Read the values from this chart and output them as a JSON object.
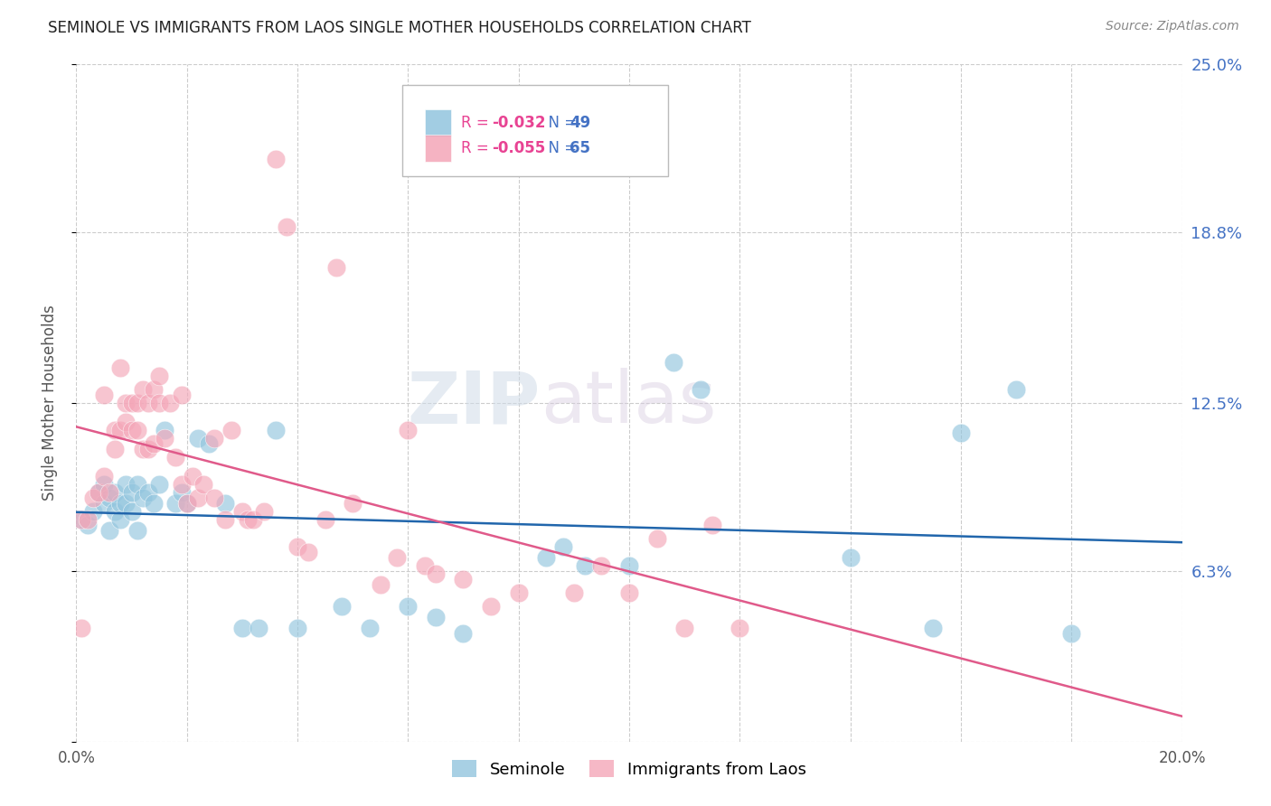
{
  "title": "SEMINOLE VS IMMIGRANTS FROM LAOS SINGLE MOTHER HOUSEHOLDS CORRELATION CHART",
  "source": "Source: ZipAtlas.com",
  "ylabel": "Single Mother Households",
  "xlim": [
    0.0,
    0.2
  ],
  "ylim": [
    0.0,
    0.25
  ],
  "ytick_positions": [
    0.0,
    0.063,
    0.125,
    0.188,
    0.25
  ],
  "ytick_labels": [
    "",
    "6.3%",
    "12.5%",
    "18.8%",
    "25.0%"
  ],
  "grid_color": "#cccccc",
  "background_color": "#ffffff",
  "watermark_text": "ZIPatlas",
  "series": [
    {
      "label": "Seminole",
      "color": "#92c5de",
      "R": -0.032,
      "N": 49,
      "x": [
        0.001,
        0.002,
        0.003,
        0.004,
        0.005,
        0.005,
        0.006,
        0.006,
        0.007,
        0.007,
        0.008,
        0.008,
        0.009,
        0.009,
        0.01,
        0.01,
        0.011,
        0.011,
        0.012,
        0.013,
        0.014,
        0.015,
        0.016,
        0.018,
        0.019,
        0.02,
        0.022,
        0.024,
        0.027,
        0.03,
        0.033,
        0.036,
        0.04,
        0.048,
        0.053,
        0.06,
        0.065,
        0.07,
        0.085,
        0.088,
        0.092,
        0.1,
        0.108,
        0.113,
        0.14,
        0.155,
        0.16,
        0.17,
        0.18
      ],
      "y": [
        0.082,
        0.08,
        0.085,
        0.092,
        0.088,
        0.095,
        0.078,
        0.09,
        0.085,
        0.092,
        0.088,
        0.082,
        0.095,
        0.088,
        0.092,
        0.085,
        0.095,
        0.078,
        0.09,
        0.092,
        0.088,
        0.095,
        0.115,
        0.088,
        0.092,
        0.088,
        0.112,
        0.11,
        0.088,
        0.042,
        0.042,
        0.115,
        0.042,
        0.05,
        0.042,
        0.05,
        0.046,
        0.04,
        0.068,
        0.072,
        0.065,
        0.065,
        0.14,
        0.13,
        0.068,
        0.042,
        0.114,
        0.13,
        0.04
      ]
    },
    {
      "label": "Immigrants from Laos",
      "color": "#f4a6b8",
      "R": -0.055,
      "N": 65,
      "x": [
        0.001,
        0.001,
        0.002,
        0.003,
        0.004,
        0.005,
        0.005,
        0.006,
        0.007,
        0.007,
        0.008,
        0.008,
        0.009,
        0.009,
        0.01,
        0.01,
        0.011,
        0.011,
        0.012,
        0.012,
        0.013,
        0.013,
        0.014,
        0.014,
        0.015,
        0.015,
        0.016,
        0.017,
        0.018,
        0.019,
        0.019,
        0.02,
        0.021,
        0.022,
        0.023,
        0.025,
        0.025,
        0.027,
        0.028,
        0.03,
        0.031,
        0.032,
        0.034,
        0.036,
        0.038,
        0.04,
        0.042,
        0.045,
        0.047,
        0.05,
        0.055,
        0.058,
        0.06,
        0.063,
        0.065,
        0.07,
        0.075,
        0.08,
        0.09,
        0.095,
        0.1,
        0.105,
        0.11,
        0.115,
        0.12
      ],
      "y": [
        0.082,
        0.042,
        0.082,
        0.09,
        0.092,
        0.128,
        0.098,
        0.092,
        0.115,
        0.108,
        0.138,
        0.115,
        0.118,
        0.125,
        0.115,
        0.125,
        0.115,
        0.125,
        0.108,
        0.13,
        0.108,
        0.125,
        0.11,
        0.13,
        0.135,
        0.125,
        0.112,
        0.125,
        0.105,
        0.128,
        0.095,
        0.088,
        0.098,
        0.09,
        0.095,
        0.112,
        0.09,
        0.082,
        0.115,
        0.085,
        0.082,
        0.082,
        0.085,
        0.215,
        0.19,
        0.072,
        0.07,
        0.082,
        0.175,
        0.088,
        0.058,
        0.068,
        0.115,
        0.065,
        0.062,
        0.06,
        0.05,
        0.055,
        0.055,
        0.065,
        0.055,
        0.075,
        0.042,
        0.08,
        0.042
      ]
    }
  ],
  "trendline_blue_color": "#2166ac",
  "trendline_pink_color": "#e05a8a",
  "legend_R_color": "#e84393",
  "legend_N_color": "#4472c4"
}
